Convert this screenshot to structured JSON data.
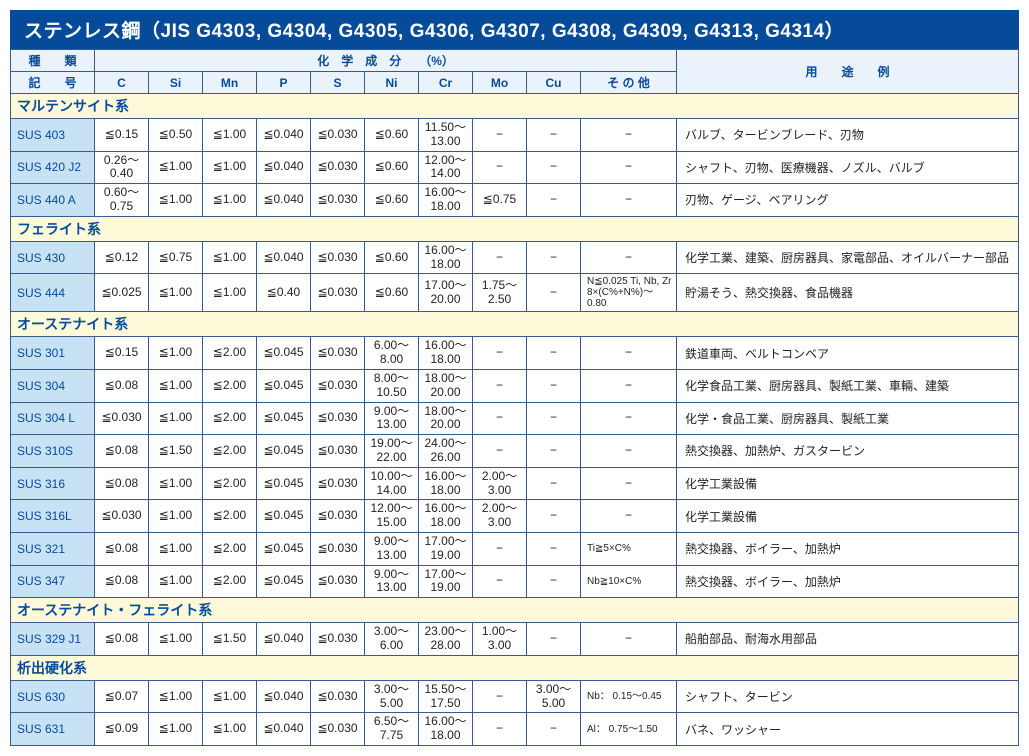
{
  "title": "ステンレス鋼（JIS G4303, G4304, G4305, G4306, G4307, G4308, G4309, G4313, G4314）",
  "header": {
    "type_label": "種　　類",
    "chem_label": "化　学　成　分　　（%）",
    "usage_label": "用　　途　　例",
    "symbol_label": "記　　号",
    "cols": [
      "C",
      "Si",
      "Mn",
      "P",
      "S",
      "Ni",
      "Cr",
      "Mo",
      "Cu",
      "そ の 他"
    ]
  },
  "sections": [
    {
      "name": "マルテンサイト系",
      "rows": [
        {
          "label": "SUS 403",
          "c": "≦0.15",
          "si": "≦0.50",
          "mn": "≦1.00",
          "p": "≦0.040",
          "s": "≦0.030",
          "ni": "≦0.60",
          "cr": "11.50～\n13.00",
          "mo": "−",
          "cu": "−",
          "other": "−",
          "usage": "バルブ、タービンブレード、刃物"
        },
        {
          "label": "SUS 420 J2",
          "c": "0.26～\n0.40",
          "si": "≦1.00",
          "mn": "≦1.00",
          "p": "≦0.040",
          "s": "≦0.030",
          "ni": "≦0.60",
          "cr": "12.00～\n14.00",
          "mo": "−",
          "cu": "−",
          "other": "−",
          "usage": "シャフト、刃物、医療機器、ノズル、バルブ"
        },
        {
          "label": "SUS 440 A",
          "c": "0.60～\n0.75",
          "si": "≦1.00",
          "mn": "≦1.00",
          "p": "≦0.040",
          "s": "≦0.030",
          "ni": "≦0.60",
          "cr": "16.00～\n18.00",
          "mo": "≦0.75",
          "cu": "−",
          "other": "−",
          "usage": "刃物、ゲージ、ベアリング"
        }
      ]
    },
    {
      "name": "フェライト系",
      "rows": [
        {
          "label": "SUS 430",
          "c": "≦0.12",
          "si": "≦0.75",
          "mn": "≦1.00",
          "p": "≦0.040",
          "s": "≦0.030",
          "ni": "≦0.60",
          "cr": "16.00～\n18.00",
          "mo": "−",
          "cu": "−",
          "other": "−",
          "usage": "化学工業、建築、厨房器具、家電部品、オイルバーナー部品"
        },
        {
          "label": "SUS 444",
          "c": "≦0.025",
          "si": "≦1.00",
          "mn": "≦1.00",
          "p": "≦0.40",
          "s": "≦0.030",
          "ni": "≦0.60",
          "cr": "17.00～\n20.00",
          "mo": "1.75～\n2.50",
          "cu": "−",
          "other": "N≦0.025\nTi, Nb, Zr\n8×(C%+N%)～0.80",
          "usage": "貯湯そう、熱交換器、食品機器"
        }
      ]
    },
    {
      "name": "オーステナイト系",
      "rows": [
        {
          "label": "SUS 301",
          "c": "≦0.15",
          "si": "≦1.00",
          "mn": "≦2.00",
          "p": "≦0.045",
          "s": "≦0.030",
          "ni": "6.00～\n8.00",
          "cr": "16.00～\n18.00",
          "mo": "−",
          "cu": "−",
          "other": "−",
          "usage": "鉄道車両、ベルトコンベア"
        },
        {
          "label": "SUS 304",
          "c": "≦0.08",
          "si": "≦1.00",
          "mn": "≦2.00",
          "p": "≦0.045",
          "s": "≦0.030",
          "ni": "8.00～\n10.50",
          "cr": "18.00～\n20.00",
          "mo": "−",
          "cu": "−",
          "other": "−",
          "usage": "化学食品工業、厨房器具、製紙工業、車輛、建築"
        },
        {
          "label": "SUS 304 L",
          "c": "≦0.030",
          "si": "≦1.00",
          "mn": "≦2.00",
          "p": "≦0.045",
          "s": "≦0.030",
          "ni": "9.00～\n13.00",
          "cr": "18.00～\n20.00",
          "mo": "−",
          "cu": "−",
          "other": "−",
          "usage": "化学・食品工業、厨房器具、製紙工業"
        },
        {
          "label": "SUS 310S",
          "c": "≦0.08",
          "si": "≦1.50",
          "mn": "≦2.00",
          "p": "≦0.045",
          "s": "≦0.030",
          "ni": "19.00～\n22.00",
          "cr": "24.00～\n26.00",
          "mo": "−",
          "cu": "−",
          "other": "−",
          "usage": "熱交換器、加熱炉、ガスタービン"
        },
        {
          "label": "SUS 316",
          "c": "≦0.08",
          "si": "≦1.00",
          "mn": "≦2.00",
          "p": "≦0.045",
          "s": "≦0.030",
          "ni": "10.00～\n14.00",
          "cr": "16.00～\n18.00",
          "mo": "2.00～\n3.00",
          "cu": "−",
          "other": "−",
          "usage": "化学工業設備"
        },
        {
          "label": "SUS 316L",
          "c": "≦0.030",
          "si": "≦1.00",
          "mn": "≦2.00",
          "p": "≦0.045",
          "s": "≦0.030",
          "ni": "12.00～\n15.00",
          "cr": "16.00～\n18.00",
          "mo": "2.00～\n3.00",
          "cu": "−",
          "other": "−",
          "usage": "化学工業設備"
        },
        {
          "label": "SUS 321",
          "c": "≦0.08",
          "si": "≦1.00",
          "mn": "≦2.00",
          "p": "≦0.045",
          "s": "≦0.030",
          "ni": "9.00～\n13.00",
          "cr": "17.00～\n19.00",
          "mo": "−",
          "cu": "−",
          "other": "Ti≧5×C%",
          "usage": "熱交換器、ボイラー、加熱炉"
        },
        {
          "label": "SUS 347",
          "c": "≦0.08",
          "si": "≦1.00",
          "mn": "≦2.00",
          "p": "≦0.045",
          "s": "≦0.030",
          "ni": "9.00～\n13.00",
          "cr": "17.00～\n19.00",
          "mo": "−",
          "cu": "−",
          "other": "Nb≧10×C%",
          "usage": "熱交換器、ボイラー、加熱炉"
        }
      ]
    },
    {
      "name": "オーステナイト・フェライト系",
      "rows": [
        {
          "label": "SUS 329 J1",
          "c": "≦0.08",
          "si": "≦1.00",
          "mn": "≦1.50",
          "p": "≦0.040",
          "s": "≦0.030",
          "ni": "3.00～\n6.00",
          "cr": "23.00～\n28.00",
          "mo": "1.00～\n3.00",
          "cu": "−",
          "other": "−",
          "usage": "船舶部品、耐海水用部品"
        }
      ]
    },
    {
      "name": "析出硬化系",
      "rows": [
        {
          "label": "SUS 630",
          "c": "≦0.07",
          "si": "≦1.00",
          "mn": "≦1.00",
          "p": "≦0.040",
          "s": "≦0.030",
          "ni": "3.00～\n5.00",
          "cr": "15.50～\n17.50",
          "mo": "−",
          "cu": "3.00～\n5.00",
          "other": "Nb：\n0.15～0.45",
          "usage": "シャフト、タービン"
        },
        {
          "label": "SUS 631",
          "c": "≦0.09",
          "si": "≦1.00",
          "mn": "≦1.00",
          "p": "≦0.040",
          "s": "≦0.030",
          "ni": "6.50～\n7.75",
          "cr": "16.00～\n18.00",
          "mo": "−",
          "cu": "−",
          "other": "Al：\n0.75～1.50",
          "usage": "バネ、ワッシャー"
        }
      ]
    }
  ],
  "colors": {
    "title_bg": "#064a9a",
    "title_fg": "#ffffff",
    "header_bg": "#eaf3fb",
    "label_bg": "#c7e2f5",
    "section_bg": "#fdf9d9",
    "border": "#3a5a8a"
  }
}
